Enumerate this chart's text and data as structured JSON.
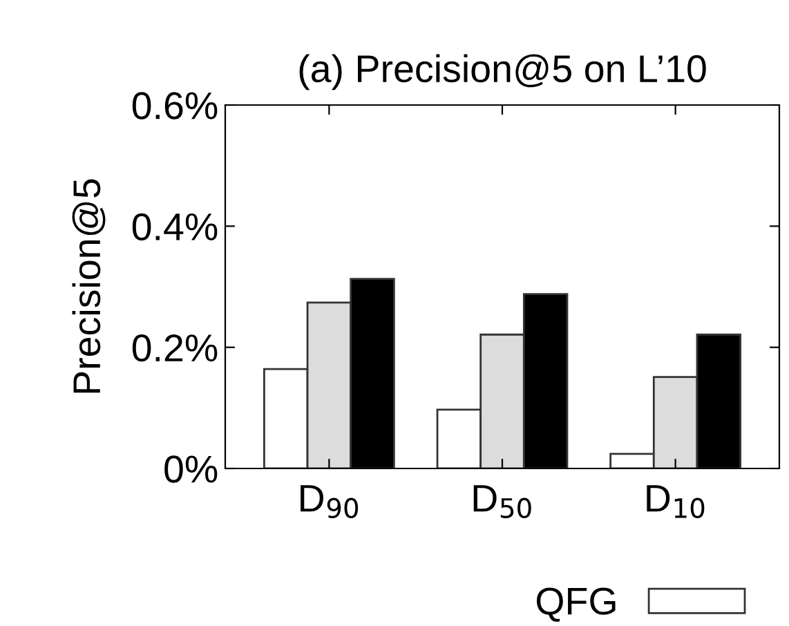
{
  "chart_data": {
    "type": "bar",
    "title": "(a) Precision@5 on L’10",
    "ylabel": "Precision@5",
    "categories": [
      "D$_{90}$",
      "D$_{50}$",
      "D$_{10}$"
    ],
    "series": [
      {
        "name": "QFG",
        "color": "#ffffff",
        "values": [
          0.164,
          0.097,
          0.024
        ]
      },
      {
        "color": "#dcdcdc",
        "values": [
          0.274,
          0.221,
          0.151
        ]
      },
      {
        "color": "#000000",
        "values": [
          0.313,
          0.288,
          0.221
        ]
      }
    ],
    "ylim": [
      0,
      0.6
    ],
    "yticks": [
      {
        "value": 0,
        "label": "0%"
      },
      {
        "value": 0.2,
        "label": "0.2%"
      },
      {
        "value": 0.4,
        "label": "0.4%"
      },
      {
        "value": 0.6,
        "label": "0.6%"
      }
    ],
    "grid": false,
    "legend": "bottom right"
  }
}
